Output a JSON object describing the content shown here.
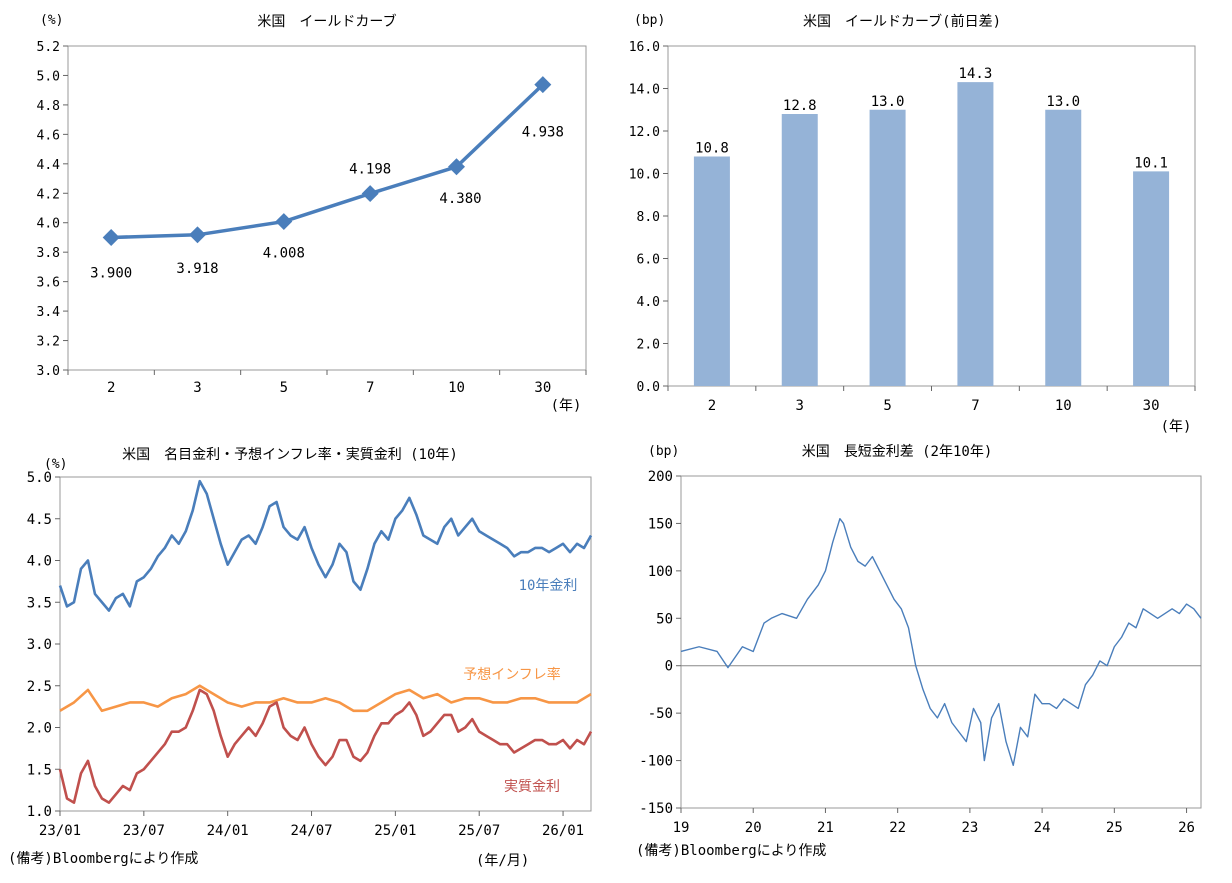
{
  "footer": {
    "source_left": "(備考)Bloombergにより作成",
    "unit_bottom": "(年/月)",
    "source_right": "(備考)Bloombergにより作成"
  },
  "chart_data": [
    {
      "id": "yield_curve",
      "type": "line",
      "title": "米国　イールドカーブ",
      "ylabel": "(%)",
      "xlabel": "(年)",
      "categories": [
        "2",
        "3",
        "5",
        "7",
        "10",
        "30"
      ],
      "values": [
        3.9,
        3.918,
        4.008,
        4.198,
        4.38,
        4.938
      ],
      "labels": [
        "3.900",
        "3.918",
        "4.008",
        "4.198",
        "4.380",
        "4.938"
      ],
      "ylim": [
        3.0,
        5.2
      ],
      "yticks": [
        "3.0",
        "3.2",
        "3.4",
        "3.6",
        "3.8",
        "4.0",
        "4.2",
        "4.4",
        "4.6",
        "4.8",
        "5.0",
        "5.2"
      ],
      "color": "#4a7ebb"
    },
    {
      "id": "yield_change",
      "type": "bar",
      "title": "米国　イールドカーブ(前日差)",
      "ylabel": "(bp)",
      "xlabel": "(年)",
      "categories": [
        "2",
        "3",
        "5",
        "7",
        "10",
        "30"
      ],
      "values": [
        10.8,
        12.8,
        13.0,
        14.3,
        13.0,
        10.1
      ],
      "labels": [
        "10.8",
        "12.8",
        "13.0",
        "14.3",
        "13.0",
        "10.1"
      ],
      "ylim": [
        0,
        16
      ],
      "yticks": [
        "0.0",
        "2.0",
        "4.0",
        "6.0",
        "8.0",
        "10.0",
        "12.0",
        "14.0",
        "16.0"
      ],
      "color": "#95b3d7"
    },
    {
      "id": "rates_10y",
      "type": "line",
      "title": "米国　名目金利・予想インフレ率・実質金利 (10年)",
      "ylabel": "(%)",
      "ylim": [
        1.0,
        5.0
      ],
      "yticks": [
        "1.0",
        "1.5",
        "2.0",
        "2.5",
        "3.0",
        "3.5",
        "4.0",
        "4.5",
        "5.0"
      ],
      "xrange": [
        0,
        38
      ],
      "xticks": [
        {
          "t": 0,
          "label": "23/01"
        },
        {
          "t": 6,
          "label": "23/07"
        },
        {
          "t": 12,
          "label": "24/01"
        },
        {
          "t": 18,
          "label": "24/07"
        },
        {
          "t": 24,
          "label": "25/01"
        },
        {
          "t": 30,
          "label": "25/07"
        },
        {
          "t": 36,
          "label": "26/01"
        }
      ],
      "series": [
        {
          "name": "10年金利",
          "color": "#4a7ebb",
          "x": [
            0,
            0.5,
            1,
            1.5,
            2,
            2.5,
            3,
            3.5,
            4,
            4.5,
            5,
            5.5,
            6,
            6.5,
            7,
            7.5,
            8,
            8.5,
            9,
            9.5,
            10,
            10.5,
            11,
            11.5,
            12,
            12.5,
            13,
            13.5,
            14,
            14.5,
            15,
            15.5,
            16,
            16.5,
            17,
            17.5,
            18,
            18.5,
            19,
            19.5,
            20,
            20.5,
            21,
            21.5,
            22,
            22.5,
            23,
            23.5,
            24,
            24.5,
            25,
            25.5,
            26,
            26.5,
            27,
            27.5,
            28,
            28.5,
            29,
            29.5,
            30,
            30.5,
            31,
            31.5,
            32,
            32.5,
            33,
            33.5,
            34,
            34.5,
            35,
            35.5,
            36,
            36.5,
            37,
            37.5,
            38
          ],
          "y": [
            3.7,
            3.45,
            3.5,
            3.9,
            4.0,
            3.6,
            3.5,
            3.4,
            3.55,
            3.6,
            3.45,
            3.75,
            3.8,
            3.9,
            4.05,
            4.15,
            4.3,
            4.2,
            4.35,
            4.6,
            4.95,
            4.8,
            4.5,
            4.2,
            3.95,
            4.1,
            4.25,
            4.3,
            4.2,
            4.4,
            4.65,
            4.7,
            4.4,
            4.3,
            4.25,
            4.4,
            4.15,
            3.95,
            3.8,
            3.95,
            4.2,
            4.1,
            3.75,
            3.65,
            3.9,
            4.2,
            4.35,
            4.25,
            4.5,
            4.6,
            4.75,
            4.55,
            4.3,
            4.25,
            4.2,
            4.4,
            4.5,
            4.3,
            4.4,
            4.5,
            4.35,
            4.3,
            4.25,
            4.2,
            4.15,
            4.05,
            4.1,
            4.1,
            4.15,
            4.15,
            4.1,
            4.15,
            4.2,
            4.1,
            4.2,
            4.15,
            4.3
          ]
        },
        {
          "name": "予想インフレ率",
          "color": "#f79646",
          "x": [
            0,
            1,
            2,
            3,
            4,
            5,
            6,
            7,
            8,
            9,
            10,
            11,
            12,
            13,
            14,
            15,
            16,
            17,
            18,
            19,
            20,
            21,
            22,
            23,
            24,
            25,
            26,
            27,
            28,
            29,
            30,
            31,
            32,
            33,
            34,
            35,
            36,
            37,
            38
          ],
          "y": [
            2.2,
            2.3,
            2.45,
            2.2,
            2.25,
            2.3,
            2.3,
            2.25,
            2.35,
            2.4,
            2.5,
            2.4,
            2.3,
            2.25,
            2.3,
            2.3,
            2.35,
            2.3,
            2.3,
            2.35,
            2.3,
            2.2,
            2.2,
            2.3,
            2.4,
            2.45,
            2.35,
            2.4,
            2.3,
            2.35,
            2.35,
            2.3,
            2.3,
            2.35,
            2.35,
            2.3,
            2.3,
            2.3,
            2.4
          ]
        },
        {
          "name": "実質金利",
          "color": "#c0504d",
          "x": [
            0,
            0.5,
            1,
            1.5,
            2,
            2.5,
            3,
            3.5,
            4,
            4.5,
            5,
            5.5,
            6,
            6.5,
            7,
            7.5,
            8,
            8.5,
            9,
            9.5,
            10,
            10.5,
            11,
            11.5,
            12,
            12.5,
            13,
            13.5,
            14,
            14.5,
            15,
            15.5,
            16,
            16.5,
            17,
            17.5,
            18,
            18.5,
            19,
            19.5,
            20,
            20.5,
            21,
            21.5,
            22,
            22.5,
            23,
            23.5,
            24,
            24.5,
            25,
            25.5,
            26,
            26.5,
            27,
            27.5,
            28,
            28.5,
            29,
            29.5,
            30,
            30.5,
            31,
            31.5,
            32,
            32.5,
            33,
            33.5,
            34,
            34.5,
            35,
            35.5,
            36,
            36.5,
            37,
            37.5,
            38
          ],
          "y": [
            1.5,
            1.15,
            1.1,
            1.45,
            1.6,
            1.3,
            1.15,
            1.1,
            1.2,
            1.3,
            1.25,
            1.45,
            1.5,
            1.6,
            1.7,
            1.8,
            1.95,
            1.95,
            2.0,
            2.2,
            2.45,
            2.4,
            2.2,
            1.9,
            1.65,
            1.8,
            1.9,
            2.0,
            1.9,
            2.05,
            2.25,
            2.3,
            2.0,
            1.9,
            1.85,
            2.0,
            1.8,
            1.65,
            1.55,
            1.65,
            1.85,
            1.85,
            1.65,
            1.6,
            1.7,
            1.9,
            2.05,
            2.05,
            2.15,
            2.2,
            2.3,
            2.15,
            1.9,
            1.95,
            2.05,
            2.15,
            2.15,
            1.95,
            2.0,
            2.1,
            1.95,
            1.9,
            1.85,
            1.8,
            1.8,
            1.7,
            1.75,
            1.8,
            1.85,
            1.85,
            1.8,
            1.8,
            1.85,
            1.75,
            1.85,
            1.8,
            1.95
          ]
        }
      ],
      "series_labels": [
        "10年金利",
        "予想インフレ率",
        "実質金利"
      ]
    },
    {
      "id": "spread_2s10s",
      "type": "line",
      "title": "米国　長短金利差 (2年10年)",
      "ylabel": "(bp)",
      "ylim": [
        -150,
        200
      ],
      "yticks": [
        "-150",
        "-100",
        "-50",
        "0",
        "50",
        "100",
        "150",
        "200"
      ],
      "xrange": [
        19,
        26.2
      ],
      "xticks": [
        {
          "t": 19,
          "label": "19"
        },
        {
          "t": 20,
          "label": "20"
        },
        {
          "t": 21,
          "label": "21"
        },
        {
          "t": 22,
          "label": "22"
        },
        {
          "t": 23,
          "label": "23"
        },
        {
          "t": 24,
          "label": "24"
        },
        {
          "t": 25,
          "label": "25"
        },
        {
          "t": 26,
          "label": "26"
        }
      ],
      "series": [
        {
          "name": "長短金利差",
          "color": "#4a7ebb",
          "x": [
            19,
            19.25,
            19.5,
            19.65,
            19.85,
            20,
            20.15,
            20.25,
            20.4,
            20.6,
            20.75,
            20.9,
            21.0,
            21.1,
            21.2,
            21.25,
            21.35,
            21.45,
            21.55,
            21.65,
            21.75,
            21.85,
            21.95,
            22.05,
            22.15,
            22.25,
            22.35,
            22.45,
            22.55,
            22.65,
            22.75,
            22.85,
            22.95,
            23.05,
            23.15,
            23.2,
            23.3,
            23.4,
            23.5,
            23.6,
            23.7,
            23.8,
            23.9,
            24.0,
            24.1,
            24.2,
            24.3,
            24.4,
            24.5,
            24.6,
            24.7,
            24.8,
            24.9,
            25.0,
            25.1,
            25.2,
            25.3,
            25.4,
            25.5,
            25.6,
            25.7,
            25.8,
            25.9,
            26.0,
            26.1,
            26.2
          ],
          "y": [
            15,
            20,
            15,
            -2,
            20,
            15,
            45,
            50,
            55,
            50,
            70,
            85,
            100,
            130,
            155,
            150,
            125,
            110,
            105,
            115,
            100,
            85,
            70,
            60,
            40,
            0,
            -25,
            -45,
            -55,
            -40,
            -60,
            -70,
            -80,
            -45,
            -60,
            -100,
            -55,
            -40,
            -80,
            -105,
            -65,
            -75,
            -30,
            -40,
            -40,
            -45,
            -35,
            -40,
            -45,
            -20,
            -10,
            5,
            0,
            20,
            30,
            45,
            40,
            60,
            55,
            50,
            55,
            60,
            55,
            65,
            60,
            50
          ]
        }
      ],
      "zero_line": 0
    }
  ]
}
